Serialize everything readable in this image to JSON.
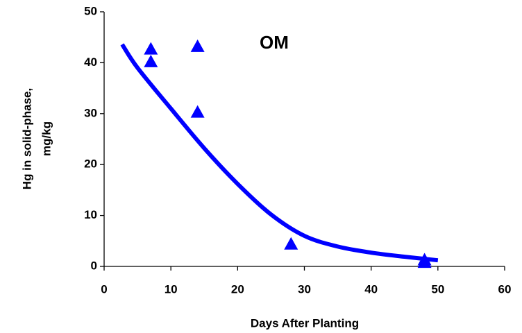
{
  "chart_data": {
    "type": "scatter",
    "annotation": "OM",
    "x_label": "Days After Planting",
    "y_label": [
      "Hg in solid-phase,",
      "mg/kg"
    ],
    "points": {
      "x": [
        7,
        7,
        14,
        14,
        28,
        48,
        48
      ],
      "y": [
        42.7,
        40.2,
        43.2,
        30.3,
        4.4,
        1.3,
        0.8
      ],
      "color": "#0000ff"
    },
    "fit": {
      "x": [
        2.7,
        5,
        10,
        15,
        20,
        25,
        30,
        35,
        40,
        45,
        50
      ],
      "y": [
        43.6,
        39,
        31,
        23.2,
        16.2,
        10.2,
        6,
        3.9,
        2.7,
        1.9,
        1.2
      ],
      "color": "#0000ff"
    },
    "xlim": [
      0,
      60
    ],
    "xticks": [
      0,
      10,
      20,
      30,
      40,
      50,
      60
    ],
    "ylim": [
      0,
      50
    ],
    "yticks": [
      0,
      10,
      20,
      30,
      40,
      50
    ],
    "grid": false
  }
}
